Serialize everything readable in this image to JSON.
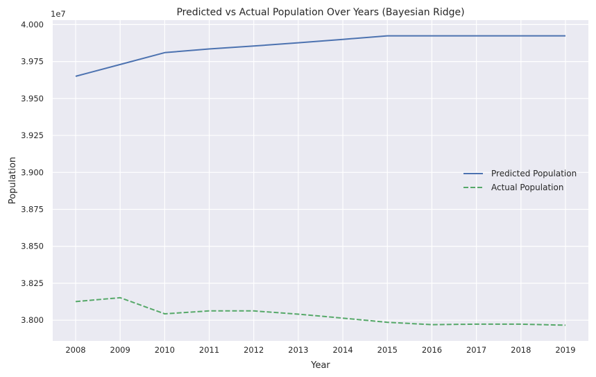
{
  "chart_data": {
    "type": "line",
    "title": "Predicted vs Actual Population Over Years (Bayesian Ridge)",
    "xlabel": "Year",
    "ylabel": "Population",
    "y_offset_label": "1e7",
    "x": [
      2008,
      2009,
      2010,
      2011,
      2012,
      2013,
      2014,
      2015,
      2016,
      2017,
      2018,
      2019
    ],
    "x_tick_labels": [
      "2008",
      "2009",
      "2010",
      "2011",
      "2012",
      "2013",
      "2014",
      "2015",
      "2016",
      "2017",
      "2018",
      "2019"
    ],
    "y_tick_labels": [
      "3.800",
      "3.825",
      "3.850",
      "3.875",
      "3.900",
      "3.925",
      "3.950",
      "3.975",
      "4.000"
    ],
    "y_ticks": [
      38000000,
      38250000,
      38500000,
      38750000,
      39000000,
      39250000,
      39500000,
      39750000,
      40000000
    ],
    "ylim": [
      37860000,
      40030000
    ],
    "grid": true,
    "legend_position": "center-right",
    "series": [
      {
        "name": "Predicted Population",
        "color": "#4c72b0",
        "style": "solid",
        "values": [
          39650000,
          39730000,
          39810000,
          39835000,
          39855000,
          39877000,
          39900000,
          39924000,
          39924000,
          39924000,
          39924000,
          39924000
        ]
      },
      {
        "name": "Actual Population",
        "color": "#55a868",
        "style": "dashed",
        "values": [
          38126000,
          38152000,
          38043000,
          38063000,
          38063000,
          38041000,
          38014000,
          37986000,
          37970000,
          37973000,
          37973000,
          37966000
        ]
      }
    ]
  }
}
